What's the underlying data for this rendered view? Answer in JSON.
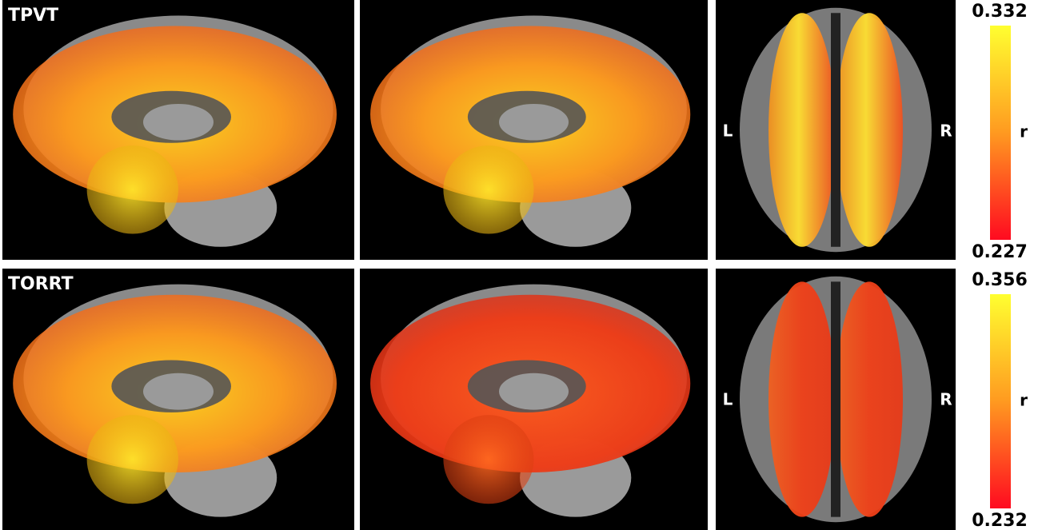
{
  "rows": [
    {
      "label": "TPVT",
      "left_label": "L",
      "right_label": "R",
      "colorbar": {
        "max": 0.332,
        "min": 0.227,
        "label": "r"
      }
    },
    {
      "label": "TORRT",
      "left_label": "L",
      "right_label": "R",
      "colorbar": {
        "max": 0.356,
        "min": 0.232,
        "label": "r"
      }
    }
  ]
}
